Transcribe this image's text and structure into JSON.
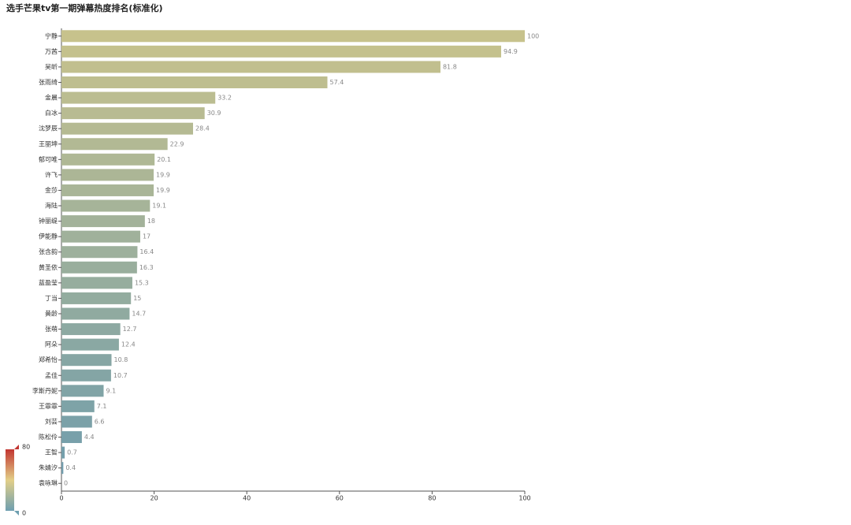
{
  "chart_data": {
    "type": "hbar",
    "title": "选手芒果tv第一期弹幕热度排名(标准化)",
    "categories": [
      "宁静",
      "万茜",
      "吴昕",
      "张雨绮",
      "金晨",
      "白冰",
      "沈梦辰",
      "王丽坤",
      "郁可唯",
      "许飞",
      "金莎",
      "海陆",
      "钟丽缇",
      "伊能静",
      "张含韵",
      "黄圣依",
      "蓝盈莹",
      "丁当",
      "黄龄",
      "张萌",
      "阿朵",
      "郑希怡",
      "孟佳",
      "李斯丹妮",
      "王霏霏",
      "刘芸",
      "陈松伶",
      "王智",
      "朱婧汐",
      "袁咏琳"
    ],
    "values": [
      100,
      94.9,
      81.8,
      57.4,
      33.2,
      30.9,
      28.4,
      22.9,
      20.1,
      19.9,
      19.9,
      19.1,
      18,
      17,
      16.4,
      16.3,
      15.3,
      15,
      14.7,
      12.7,
      12.4,
      10.8,
      10.7,
      9.1,
      7.1,
      6.6,
      4.4,
      0.7,
      0.4,
      0
    ],
    "bar_colors": [
      "#c7c28c",
      "#6f9cad"
    ],
    "xlim": [
      0,
      100
    ],
    "xticks": [
      0,
      20,
      40,
      60,
      80,
      100
    ],
    "grid": false,
    "visual_map": {
      "min": 0,
      "max": 80,
      "colors": [
        "#6e9fb0",
        "#e2cf88",
        "#c23531"
      ]
    }
  }
}
